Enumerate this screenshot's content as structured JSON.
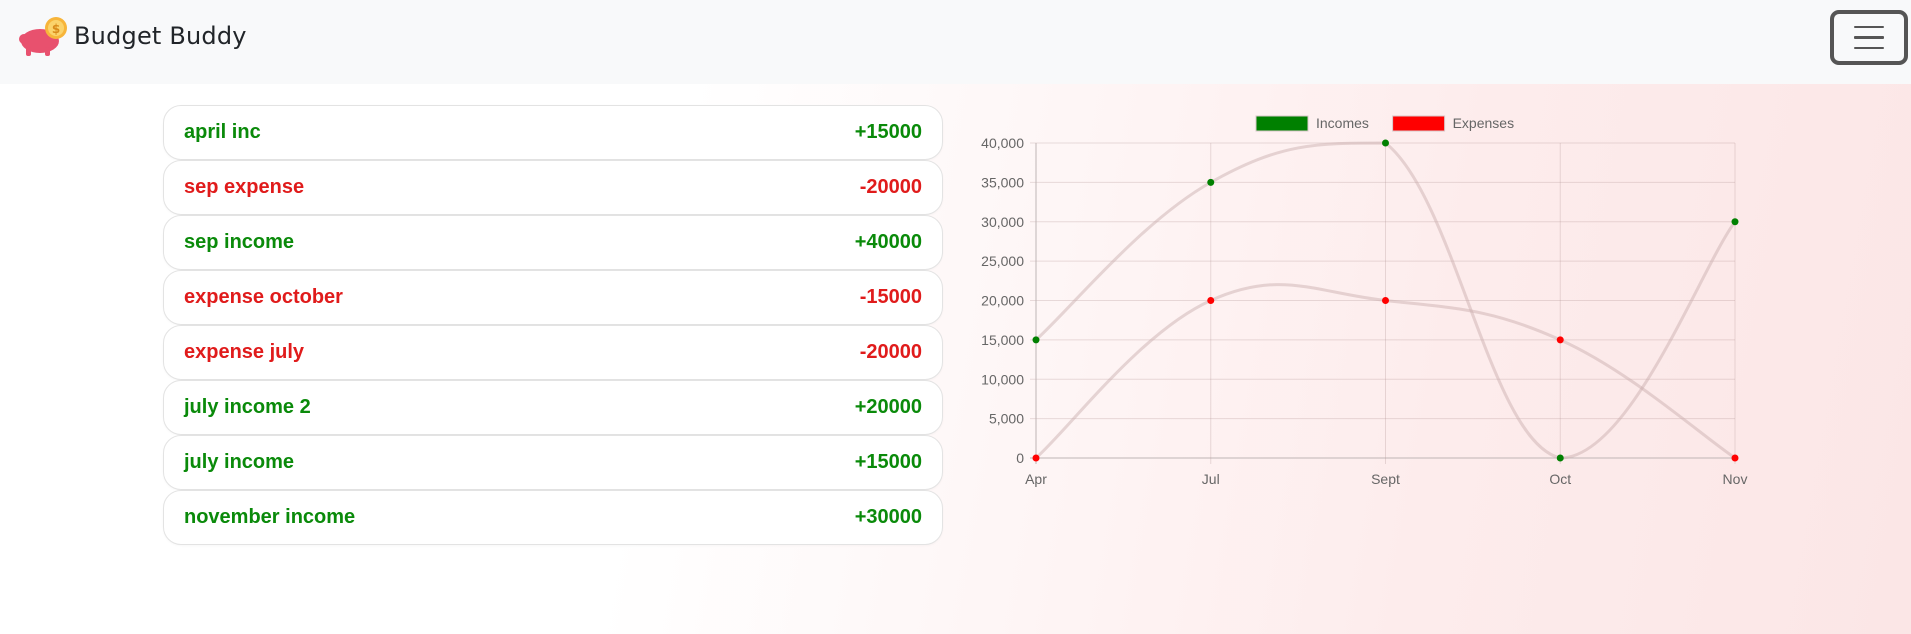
{
  "navbar": {
    "brand_name": "Budget Buddy",
    "logo_icon": "piggy-bank-coin-icon",
    "menu_icon": "hamburger-menu-icon"
  },
  "colors": {
    "income": "#0a8a0a",
    "expense": "#e01b1b",
    "income_marker": "#008000",
    "expense_marker": "#ff0000",
    "line": "rgba(200,170,170,0.45)"
  },
  "transactions": [
    {
      "name": "april inc",
      "amount": "+15000",
      "type": "income"
    },
    {
      "name": "sep expense",
      "amount": "-20000",
      "type": "expense"
    },
    {
      "name": "sep income",
      "amount": "+40000",
      "type": "income"
    },
    {
      "name": "expense october",
      "amount": "-15000",
      "type": "expense"
    },
    {
      "name": "expense july",
      "amount": "-20000",
      "type": "expense"
    },
    {
      "name": "july income 2",
      "amount": "+20000",
      "type": "income"
    },
    {
      "name": "july income",
      "amount": "+15000",
      "type": "income"
    },
    {
      "name": "november income",
      "amount": "+30000",
      "type": "income"
    }
  ],
  "chart_data": {
    "type": "line",
    "title": "",
    "xlabel": "",
    "ylabel": "",
    "categories": [
      "Apr",
      "Jul",
      "Sept",
      "Oct",
      "Nov"
    ],
    "ylim": [
      0,
      40000
    ],
    "y_ticks": [
      "0",
      "5,000",
      "10,000",
      "15,000",
      "20,000",
      "25,000",
      "30,000",
      "35,000",
      "40,000"
    ],
    "legend_position": "top",
    "grid": true,
    "series": [
      {
        "name": "Incomes",
        "values": [
          15000,
          35000,
          40000,
          0,
          30000
        ],
        "color": "#008000"
      },
      {
        "name": "Expenses",
        "values": [
          0,
          20000,
          20000,
          15000,
          0
        ],
        "color": "#ff0000"
      }
    ]
  }
}
